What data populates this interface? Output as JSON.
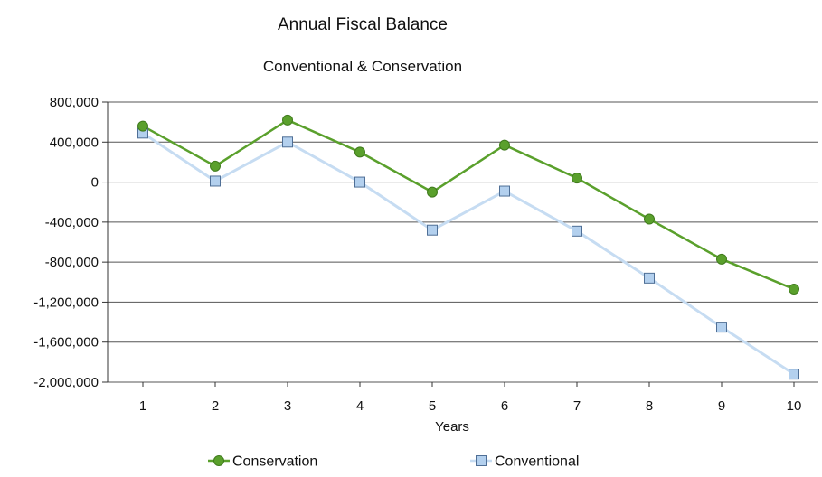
{
  "chart_data": {
    "type": "line",
    "title": "Annual Fiscal Balance",
    "subtitle": "Conventional & Conservation",
    "xlabel": "Years",
    "ylabel": "",
    "categories": [
      "1",
      "2",
      "3",
      "4",
      "5",
      "6",
      "7",
      "8",
      "9",
      "10"
    ],
    "ylim": [
      -2000000,
      800000
    ],
    "yticks": [
      800000,
      400000,
      0,
      -400000,
      -800000,
      -1200000,
      -1600000,
      -2000000
    ],
    "ytick_labels": [
      "800,000",
      "400,000",
      "0",
      "-400,000",
      "-800,000",
      "-1,200,000",
      "-1,600,000",
      "-2,000,000"
    ],
    "grid": true,
    "legend_position": "bottom",
    "series": [
      {
        "name": "Conservation",
        "values": [
          560000,
          160000,
          620000,
          300000,
          -100000,
          370000,
          40000,
          -370000,
          -770000,
          -1070000
        ],
        "color": "#5aa02c",
        "marker": "circle"
      },
      {
        "name": "Conventional",
        "values": [
          490000,
          10000,
          400000,
          0,
          -480000,
          -90000,
          -490000,
          -960000,
          -1450000,
          -1920000
        ],
        "color": "#c6dcf2",
        "marker": "square"
      }
    ]
  }
}
